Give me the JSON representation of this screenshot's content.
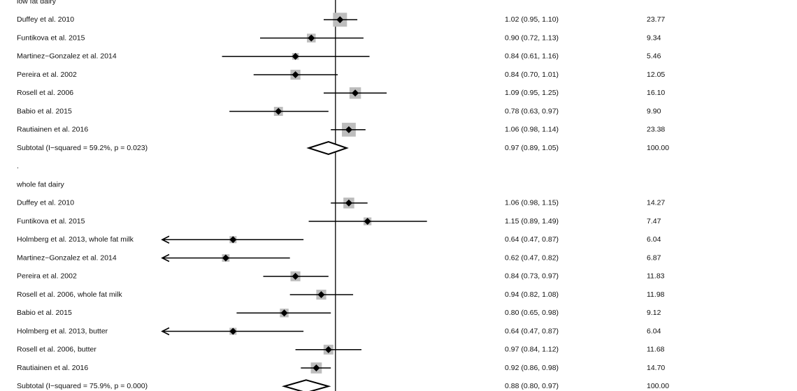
{
  "chart_data": {
    "type": "forest",
    "log_scale": true,
    "xlim": [
      0.47,
      2.13
    ],
    "null_line": 1,
    "groups": [
      {
        "title": "low fat dairy",
        "studies": [
          {
            "label": "Duffey et al. 2010",
            "estimate": 1.02,
            "lower": 0.95,
            "upper": 1.1,
            "ci_label": "1.02 (0.95, 1.10)",
            "weight": 23.77,
            "weight_label": "23.77"
          },
          {
            "label": "Funtikova et al. 2015",
            "estimate": 0.9,
            "lower": 0.72,
            "upper": 1.13,
            "ci_label": "0.90 (0.72, 1.13)",
            "weight": 9.34,
            "weight_label": "9.34"
          },
          {
            "label": "Martinez−Gonzalez et al. 2014",
            "estimate": 0.84,
            "lower": 0.61,
            "upper": 1.16,
            "ci_label": "0.84 (0.61, 1.16)",
            "weight": 5.46,
            "weight_label": "5.46"
          },
          {
            "label": "Pereira et al. 2002",
            "estimate": 0.84,
            "lower": 0.7,
            "upper": 1.01,
            "ci_label": "0.84 (0.70, 1.01)",
            "weight": 12.05,
            "weight_label": "12.05"
          },
          {
            "label": "Rosell et al. 2006",
            "estimate": 1.09,
            "lower": 0.95,
            "upper": 1.25,
            "ci_label": "1.09 (0.95, 1.25)",
            "weight": 16.1,
            "weight_label": "16.10"
          },
          {
            "label": "Babio et al. 2015",
            "estimate": 0.78,
            "lower": 0.63,
            "upper": 0.97,
            "ci_label": "0.78 (0.63, 0.97)",
            "weight": 9.9,
            "weight_label": "9.90"
          },
          {
            "label": "Rautiainen et al. 2016",
            "estimate": 1.06,
            "lower": 0.98,
            "upper": 1.14,
            "ci_label": "1.06 (0.98, 1.14)",
            "weight": 23.38,
            "weight_label": "23.38"
          }
        ],
        "subtotal": {
          "label": "Subtotal  (I−squared = 59.2%, p = 0.023)",
          "estimate": 0.97,
          "lower": 0.89,
          "upper": 1.05,
          "ci_label": "0.97 (0.89, 1.05)",
          "weight": 100.0,
          "weight_label": "100.00"
        },
        "separator": "."
      },
      {
        "title": "whole fat dairy",
        "studies": [
          {
            "label": "Duffey et al. 2010",
            "estimate": 1.06,
            "lower": 0.98,
            "upper": 1.15,
            "ci_label": "1.06 (0.98, 1.15)",
            "weight": 14.27,
            "weight_label": "14.27"
          },
          {
            "label": "Funtikova et al. 2015",
            "estimate": 1.15,
            "lower": 0.89,
            "upper": 1.49,
            "ci_label": "1.15 (0.89, 1.49)",
            "weight": 7.47,
            "weight_label": "7.47"
          },
          {
            "label": "Holmberg et al. 2013, whole fat milk",
            "estimate": 0.64,
            "lower": 0.47,
            "upper": 0.87,
            "ci_label": "0.64 (0.47, 0.87)",
            "weight": 6.04,
            "weight_label": "6.04"
          },
          {
            "label": "Martinez−Gonzalez et al. 2014",
            "estimate": 0.62,
            "lower": 0.47,
            "upper": 0.82,
            "ci_label": "0.62 (0.47, 0.82)",
            "weight": 6.87,
            "weight_label": "6.87"
          },
          {
            "label": "Pereira et al. 2002",
            "estimate": 0.84,
            "lower": 0.73,
            "upper": 0.97,
            "ci_label": "0.84 (0.73, 0.97)",
            "weight": 11.83,
            "weight_label": "11.83"
          },
          {
            "label": "Rosell et al. 2006, whole fat milk",
            "estimate": 0.94,
            "lower": 0.82,
            "upper": 1.08,
            "ci_label": "0.94 (0.82, 1.08)",
            "weight": 11.98,
            "weight_label": "11.98"
          },
          {
            "label": "Babio et al. 2015",
            "estimate": 0.8,
            "lower": 0.65,
            "upper": 0.98,
            "ci_label": "0.80 (0.65, 0.98)",
            "weight": 9.12,
            "weight_label": "9.12"
          },
          {
            "label": "Holmberg et al. 2013, butter",
            "estimate": 0.64,
            "lower": 0.47,
            "upper": 0.87,
            "ci_label": "0.64 (0.47, 0.87)",
            "weight": 6.04,
            "weight_label": "6.04"
          },
          {
            "label": "Rosell et al. 2006, butter",
            "estimate": 0.97,
            "lower": 0.84,
            "upper": 1.12,
            "ci_label": "0.97 (0.84, 1.12)",
            "weight": 11.68,
            "weight_label": "11.68"
          },
          {
            "label": "Rautiainen et al. 2016",
            "estimate": 0.92,
            "lower": 0.86,
            "upper": 0.98,
            "ci_label": "0.92 (0.86, 0.98)",
            "weight": 14.7,
            "weight_label": "14.70"
          }
        ],
        "subtotal": {
          "label": "Subtotal  (I−squared = 75.9%, p = 0.000)",
          "estimate": 0.88,
          "lower": 0.8,
          "upper": 0.97,
          "ci_label": "0.88 (0.80, 0.97)",
          "weight": 100.0,
          "weight_label": "100.00"
        }
      }
    ]
  }
}
